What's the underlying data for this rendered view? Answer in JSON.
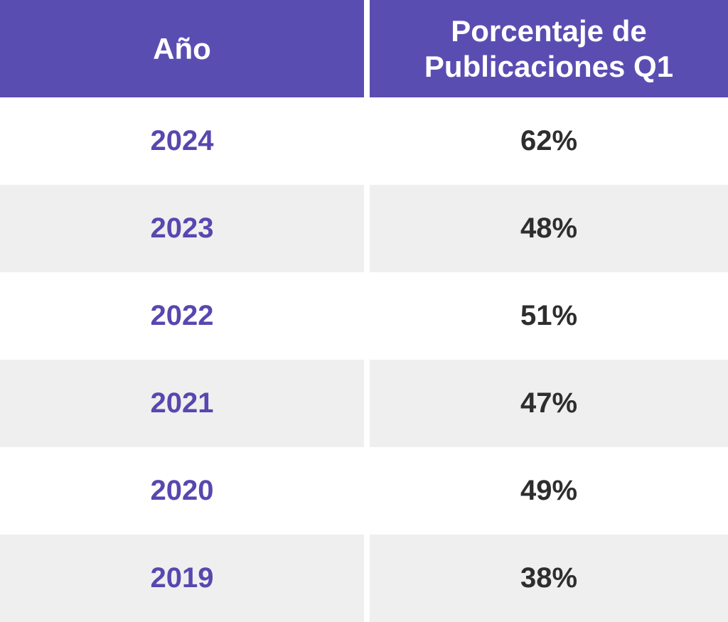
{
  "table": {
    "columns": [
      {
        "label": "Año"
      },
      {
        "label": "Porcentaje de Publicaciones Q1"
      }
    ],
    "rows": [
      {
        "year": "2024",
        "q1_percentage": "62%"
      },
      {
        "year": "2023",
        "q1_percentage": "48%"
      },
      {
        "year": "2022",
        "q1_percentage": "51%"
      },
      {
        "year": "2021",
        "q1_percentage": "47%"
      },
      {
        "year": "2020",
        "q1_percentage": "49%"
      },
      {
        "year": "2019",
        "q1_percentage": "38%"
      }
    ]
  },
  "colors": {
    "header_bg": "#5a4db2",
    "header_text": "#ffffff",
    "year_text": "#5847af",
    "value_text": "#2e2e2e",
    "row_bg": "#ffffff",
    "row_alt_bg": "#efefef"
  },
  "chart_data": {
    "type": "table",
    "title": "",
    "columns": [
      "Año",
      "Porcentaje de Publicaciones Q1"
    ],
    "categories": [
      "2024",
      "2023",
      "2022",
      "2021",
      "2020",
      "2019"
    ],
    "values": [
      62,
      48,
      51,
      47,
      49,
      38
    ],
    "value_unit": "%"
  }
}
